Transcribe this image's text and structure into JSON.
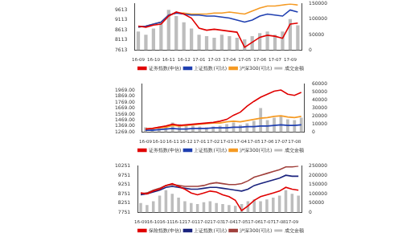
{
  "chart_data": [
    {
      "type": "bar",
      "grid": false,
      "legend": "bottom",
      "categories": [
        "16-09",
        null,
        "16-10",
        null,
        "16-11",
        null,
        "16-12",
        null,
        "17-01",
        null,
        "17-03",
        null,
        "17-04",
        null,
        "17-05",
        null,
        "17-06",
        null,
        "17-07",
        null,
        "17-09",
        null
      ],
      "ylim": [
        7613,
        9913
      ],
      "yticks": [
        7613,
        8113,
        8613,
        9113,
        9613
      ],
      "y2lim": [
        0,
        150000
      ],
      "y2ticks": [
        0,
        50000,
        100000,
        150000
      ],
      "series": [
        {
          "name": "成交金额",
          "type": "bar",
          "axis": "y2",
          "color": "#bdbdbd",
          "values": [
            60000,
            50000,
            70000,
            90000,
            130000,
            110000,
            90000,
            70000,
            50000,
            45000,
            40000,
            50000,
            45000,
            40000,
            35000,
            45000,
            55000,
            60000,
            50000,
            60000,
            100000,
            80000
          ]
        },
        {
          "name": "证券指数(中信)",
          "type": "line",
          "color": "#e00000",
          "values": [
            8800,
            8750,
            8850,
            8900,
            9300,
            9500,
            9400,
            9200,
            8700,
            8600,
            8650,
            8600,
            8550,
            8500,
            7750,
            8000,
            8250,
            8350,
            8300,
            8200,
            8900,
            8950
          ]
        },
        {
          "name": "上证指数(可比)",
          "type": "line",
          "color": "#1f3fb0",
          "values": [
            8750,
            8800,
            8900,
            9000,
            9350,
            9450,
            9400,
            9350,
            9350,
            9300,
            9300,
            9250,
            9200,
            9100,
            9000,
            9100,
            9300,
            9400,
            9350,
            9300,
            9600,
            9500
          ]
        },
        {
          "name": "沪深300(可比)",
          "type": "line",
          "color": "#f59a23",
          "values": [
            8750,
            8800,
            8900,
            9000,
            9350,
            9450,
            9450,
            9400,
            9400,
            9400,
            9450,
            9450,
            9500,
            9450,
            9400,
            9550,
            9700,
            9800,
            9800,
            9850,
            9900,
            9850
          ]
        }
      ]
    },
    {
      "type": "bar",
      "grid": false,
      "legend": "bottom",
      "categories": [
        "16-09",
        null,
        "16-10",
        null,
        "16-11",
        null,
        "16-12",
        null,
        "17-01",
        null,
        "17-02",
        null,
        "17-03",
        null,
        "17-04",
        null,
        "17-05",
        null,
        "17-06",
        null,
        "17-07",
        null,
        "17-08",
        null
      ],
      "ylim": [
        1269,
        2069
      ],
      "yticks": [
        {
          "value": 1269,
          "label": "1269.00"
        },
        {
          "value": 1369,
          "label": "1369.00"
        },
        {
          "value": 1469,
          "label": "1469.00"
        },
        {
          "value": 1569,
          "label": "1569.00"
        },
        {
          "value": 1669,
          "label": "1669.00"
        },
        {
          "value": 1769,
          "label": "1769.00"
        },
        {
          "value": 1869,
          "label": "1869.00"
        },
        {
          "value": 1969,
          "label": "1969.00"
        }
      ],
      "y2lim": [
        0,
        60000
      ],
      "y2ticks": [
        0,
        10000,
        20000,
        30000,
        40000,
        50000,
        60000
      ],
      "series": [
        {
          "name": "成交金额",
          "type": "bar",
          "axis": "y2",
          "color": "#bdbdbd",
          "values": [
            6000,
            5000,
            7000,
            8000,
            12000,
            10000,
            9000,
            8000,
            7000,
            6000,
            7000,
            8000,
            10000,
            12000,
            9000,
            11000,
            14000,
            30000,
            15000,
            18000,
            20000,
            16000,
            15000,
            18000
          ]
        },
        {
          "name": "证券指数(中信)",
          "type": "line",
          "color": "#e00000",
          "values": [
            1320,
            1330,
            1350,
            1370,
            1400,
            1380,
            1390,
            1400,
            1410,
            1420,
            1430,
            1450,
            1480,
            1550,
            1600,
            1700,
            1780,
            1850,
            1900,
            1950,
            1970,
            1900,
            1880,
            1930
          ]
        },
        {
          "name": "上证指数(可比)",
          "type": "line",
          "color": "#1f3fb0",
          "values": [
            1300,
            1300,
            1310,
            1320,
            1330,
            1320,
            1320,
            1330,
            1330,
            1330,
            1340,
            1340,
            1340,
            1350,
            1350,
            1360,
            1360,
            1370,
            1370,
            1380,
            1390,
            1380,
            1380,
            1390
          ]
        },
        {
          "name": "沪深300(可比)",
          "type": "line",
          "color": "#f59a23",
          "values": [
            1320,
            1330,
            1340,
            1350,
            1380,
            1370,
            1380,
            1390,
            1400,
            1410,
            1420,
            1420,
            1440,
            1450,
            1440,
            1460,
            1480,
            1500,
            1510,
            1530,
            1540,
            1520,
            1510,
            1530
          ]
        }
      ]
    },
    {
      "type": "bar",
      "grid": false,
      "legend": "bottom",
      "categories": [
        "16-09",
        null,
        "16-10",
        null,
        "16-11",
        null,
        "16-12",
        null,
        "17-01",
        null,
        "17-02",
        null,
        "17-03",
        null,
        "17-04",
        null,
        "17-05",
        null,
        "17-06",
        null,
        "17-07",
        null,
        "17-08",
        null,
        "17-09",
        null
      ],
      "ylim": [
        7751,
        10251
      ],
      "yticks": [
        7751,
        8251,
        8751,
        9251,
        9751,
        10251
      ],
      "y2lim": [
        0,
        250000
      ],
      "y2ticks": [
        0,
        50000,
        100000,
        150000,
        200000,
        250000
      ],
      "series": [
        {
          "name": "成交金额",
          "type": "bar",
          "axis": "y2",
          "color": "#bdbdbd",
          "values": [
            50000,
            40000,
            60000,
            90000,
            120000,
            100000,
            80000,
            60000,
            50000,
            45000,
            55000,
            60000,
            50000,
            45000,
            40000,
            35000,
            45000,
            60000,
            70000,
            60000,
            70000,
            80000,
            90000,
            120000,
            100000,
            90000
          ]
        },
        {
          "name": "保险指数(中信)",
          "type": "line",
          "color": "#e00000",
          "values": [
            8800,
            8750,
            8900,
            9000,
            9200,
            9300,
            9150,
            9000,
            8800,
            8700,
            8800,
            8900,
            8850,
            8700,
            8600,
            8400,
            7850,
            8100,
            8400,
            8600,
            8700,
            8800,
            8900,
            9100,
            9000,
            8950
          ]
        },
        {
          "name": "上证指数(可比)",
          "type": "line",
          "color": "#1a237e",
          "values": [
            8700,
            8750,
            8850,
            8950,
            9100,
            9150,
            9100,
            9050,
            9000,
            9000,
            9050,
            9100,
            9100,
            9050,
            9000,
            8950,
            8900,
            9000,
            9200,
            9300,
            9400,
            9500,
            9600,
            9750,
            9700,
            9700
          ]
        },
        {
          "name": "沪深300(可比)",
          "type": "line",
          "color": "#a0403c",
          "values": [
            8750,
            8800,
            8950,
            9050,
            9200,
            9250,
            9200,
            9150,
            9150,
            9150,
            9200,
            9300,
            9350,
            9300,
            9250,
            9250,
            9300,
            9450,
            9650,
            9750,
            9850,
            9950,
            10050,
            10200,
            10200,
            10250
          ]
        }
      ]
    }
  ]
}
